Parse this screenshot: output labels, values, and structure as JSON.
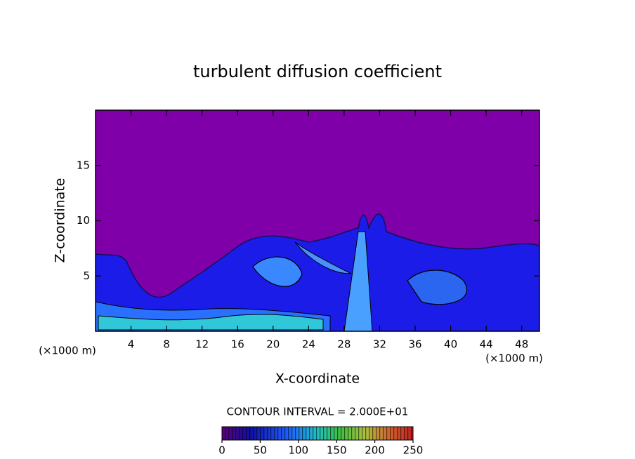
{
  "chart_data": {
    "type": "contour",
    "title": "turbulent diffusion coefficient",
    "x_label": "X-coordinate",
    "y_label": "Z-coordinate",
    "x_unit": "(×1000 m)",
    "y_unit": "(×1000 m)",
    "xlim": [
      0,
      50
    ],
    "xticks": [
      4,
      8,
      12,
      16,
      20,
      24,
      28,
      32,
      36,
      40,
      44,
      48
    ],
    "ylim": [
      0,
      20
    ],
    "yticks": [
      5,
      10,
      15
    ],
    "contour_interval": "CONTOUR INTERVAL = 2.000E+01",
    "colorbar": {
      "lim": [
        0,
        250
      ],
      "ticks": [
        0,
        50,
        100,
        150,
        200,
        250
      ]
    }
  }
}
